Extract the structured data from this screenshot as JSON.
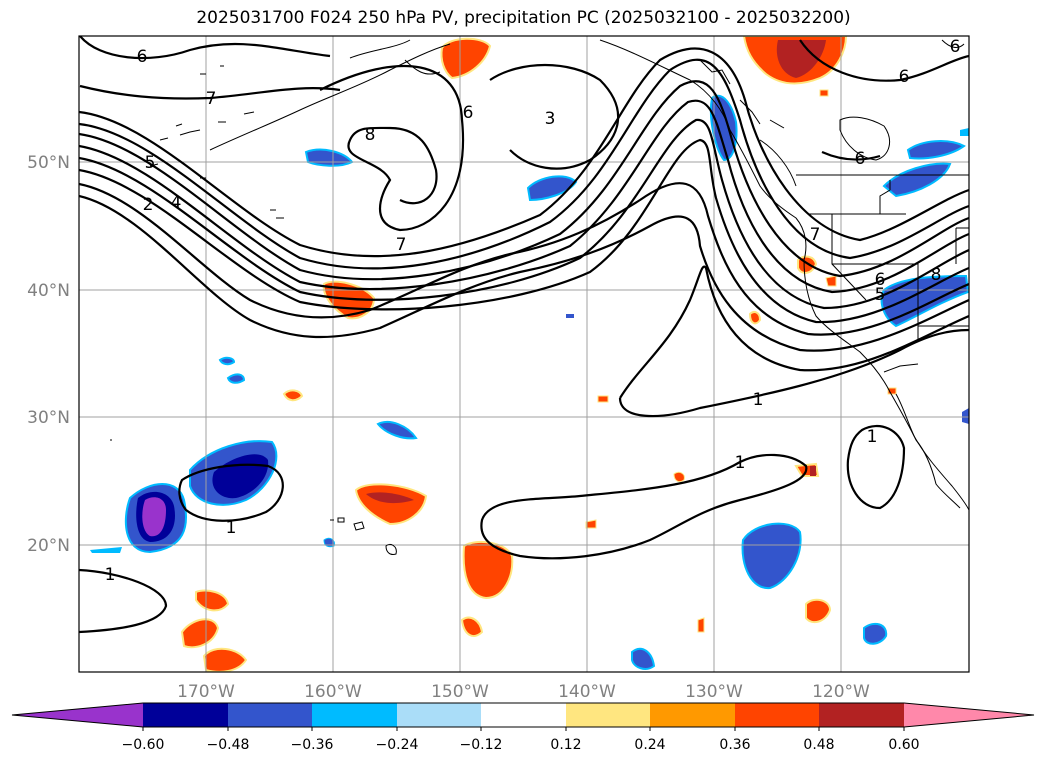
{
  "title": "2025031700 F024 250 hPa PV, precipitation PC (2025032100 - 2025032200)",
  "map": {
    "lon_labels": [
      "170°W",
      "160°W",
      "150°W",
      "140°W",
      "130°W",
      "120°W"
    ],
    "lat_labels": [
      "50°N",
      "40°N",
      "30°N",
      "20°N"
    ],
    "gridline_color": "#a0a0a0",
    "contour_color": "#000000",
    "contour_labels": [
      "6",
      "7",
      "5",
      "2",
      "4",
      "8",
      "6",
      "3",
      "7",
      "6",
      "6",
      "6",
      "7",
      "5",
      "6",
      "8",
      "1",
      "1",
      "1",
      "1",
      "1"
    ]
  },
  "colorbar": {
    "tick_labels": [
      "−0.60",
      "−0.48",
      "−0.36",
      "−0.24",
      "−0.12",
      "0.12",
      "0.24",
      "0.36",
      "0.48",
      "0.60"
    ],
    "colors": [
      "#9933cc",
      "#000099",
      "#3355cc",
      "#00bbff",
      "#aaddf8",
      "#ffffff",
      "#ffe680",
      "#ff9900",
      "#ff4400",
      "#b22222",
      "#ff88aa"
    ]
  }
}
